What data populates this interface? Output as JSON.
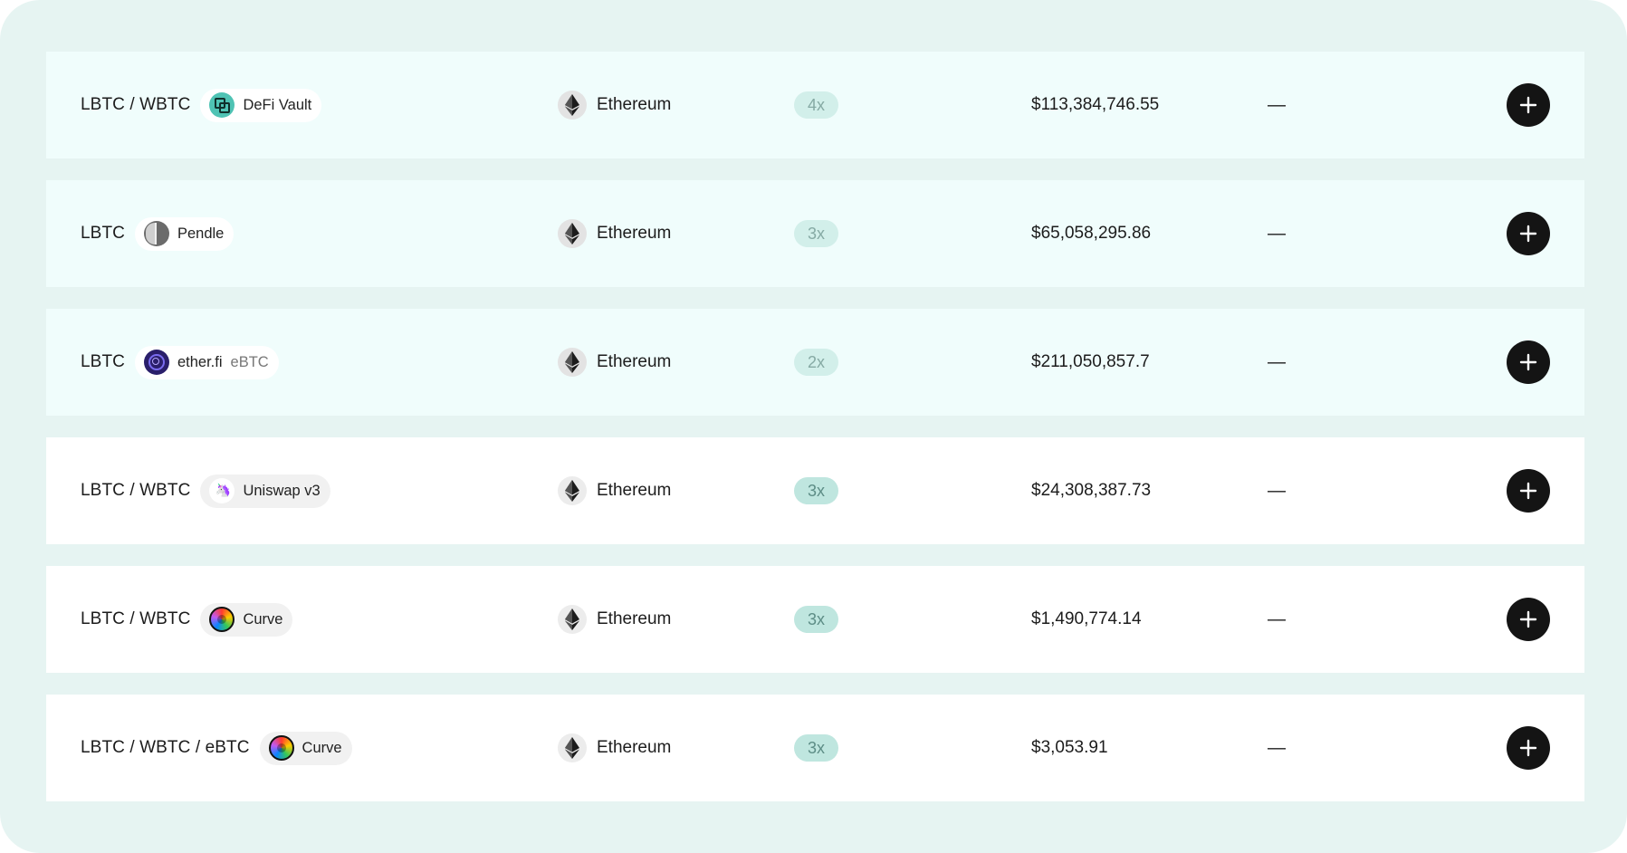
{
  "rows": [
    {
      "pair": "LBTC / WBTC",
      "protocol": "DeFi Vault",
      "protocol_logo": "defi-vault-logo",
      "protocol_extra": "",
      "chain": "Ethereum",
      "multiplier": "4x",
      "tvl": "$113,384,746.55",
      "extra_value": "—",
      "highlighted": true
    },
    {
      "pair": "LBTC",
      "protocol": "Pendle",
      "protocol_logo": "pendle-logo",
      "protocol_extra": "",
      "chain": "Ethereum",
      "multiplier": "3x",
      "tvl": "$65,058,295.86",
      "extra_value": "—",
      "highlighted": true
    },
    {
      "pair": "LBTC",
      "protocol": "ether.fi",
      "protocol_logo": "etherfi-logo",
      "protocol_extra": "eBTC",
      "chain": "Ethereum",
      "multiplier": "2x",
      "tvl": "$211,050,857.7",
      "extra_value": "—",
      "highlighted": true
    },
    {
      "pair": "LBTC / WBTC",
      "protocol": "Uniswap v3",
      "protocol_logo": "uniswap-logo",
      "protocol_extra": "",
      "chain": "Ethereum",
      "multiplier": "3x",
      "tvl": "$24,308,387.73",
      "extra_value": "—",
      "highlighted": false
    },
    {
      "pair": "LBTC / WBTC",
      "protocol": "Curve",
      "protocol_logo": "curve-logo",
      "protocol_extra": "",
      "chain": "Ethereum",
      "multiplier": "3x",
      "tvl": "$1,490,774.14",
      "extra_value": "—",
      "highlighted": false
    },
    {
      "pair": "LBTC / WBTC / eBTC",
      "protocol": "Curve",
      "protocol_logo": "curve-logo",
      "protocol_extra": "",
      "chain": "Ethereum",
      "multiplier": "3x",
      "tvl": "$3,053.91",
      "extra_value": "—",
      "highlighted": false
    }
  ],
  "icons": {
    "chain": "ethereum-icon",
    "action": "plus-icon"
  },
  "colors": {
    "background": "#e6f4f2",
    "row_highlight": "#f0fdfc",
    "row": "#ffffff",
    "multiplier_badge": "#bfe6df",
    "button": "#141414"
  }
}
